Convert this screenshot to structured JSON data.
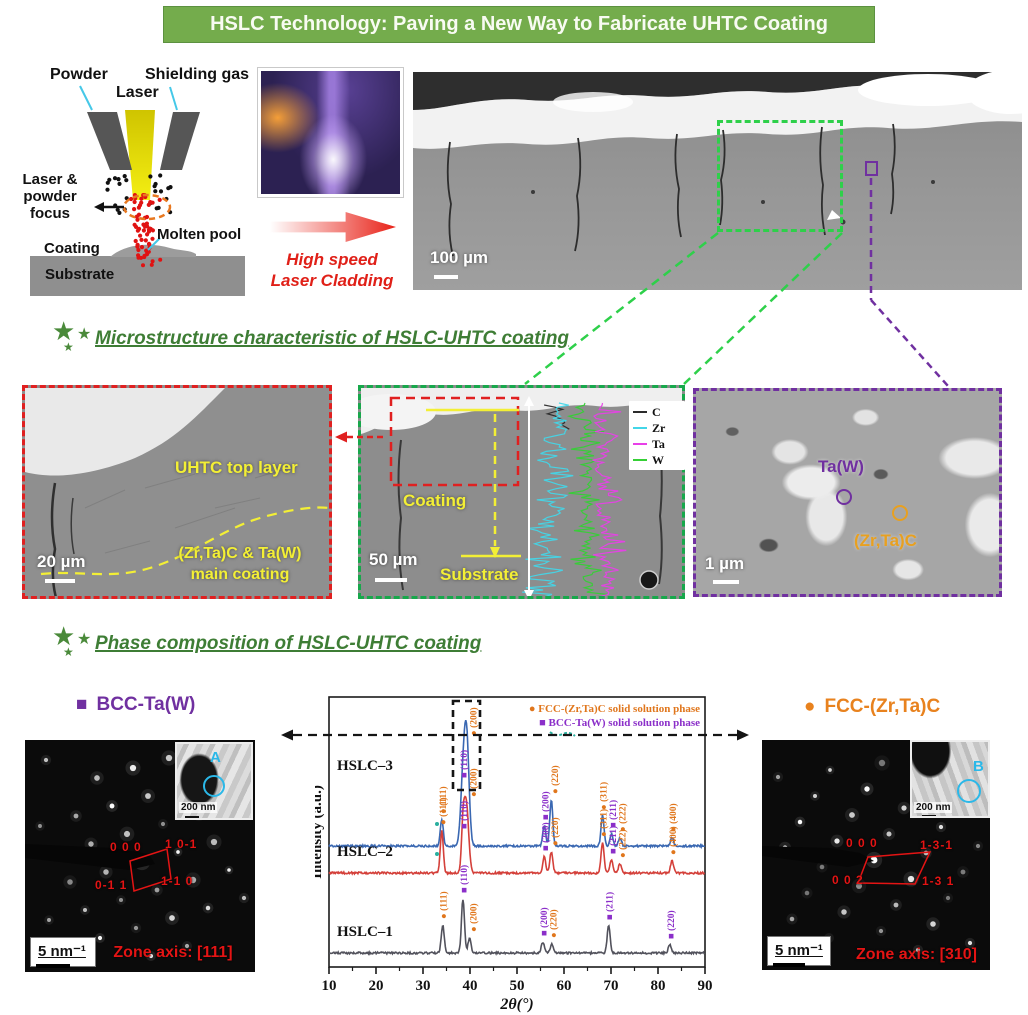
{
  "banner": {
    "title": "HSLC Technology: Paving a New Way to Fabricate UHTC Coating"
  },
  "schematic": {
    "powder": "Powder",
    "shielding_gas": "Shielding gas",
    "laser": "Laser",
    "focus": "Laser &\npowder\nfocus",
    "molten_pool": "Molten pool",
    "coating": "Coating",
    "substrate": "Substrate"
  },
  "process": {
    "caption": "High speed\nLaser Cladding"
  },
  "overview": {
    "scale_bar": "100 µm"
  },
  "sections": {
    "microstructure": "Microstructure characteristic of HSLC-UHTC coating",
    "phase": "Phase composition of HSLC-UHTC coating"
  },
  "panel_red": {
    "top_label": "UHTC top layer",
    "main_label": "(Zr,Ta)C  & Ta(W)\nmain coating",
    "scale_bar": "20 µm"
  },
  "panel_green": {
    "coating": "Coating",
    "substrate": "Substrate",
    "scale_bar": "50 µm",
    "legend": [
      {
        "label": "C",
        "color": "#2b2b2b"
      },
      {
        "label": "Zr",
        "color": "#43d6e8"
      },
      {
        "label": "Ta",
        "color": "#e840e8"
      },
      {
        "label": "W",
        "color": "#35d035"
      }
    ]
  },
  "panel_purple": {
    "taw": "Ta(W)",
    "zrtac": "(Zr,Ta)C",
    "scale_bar": "1 µm"
  },
  "bottom": {
    "bcc_marker": "■",
    "bcc_label": "BCC-Ta(W)",
    "fcc_marker": "●",
    "fcc_label": "FCC-(Zr,Ta)C",
    "sadp_left": {
      "spots": {
        "s000": "0 0 0",
        "s101": "1 0-1",
        "s011": "0-1 1",
        "s110": "1-1 0"
      },
      "zone_axis": "Zone axis: [111]",
      "scale_bar": "5 nm⁻¹",
      "inset_label": "A",
      "inset_scale": "200 nm"
    },
    "sadp_right": {
      "spots": {
        "s000": "0 0 0",
        "s131a": "1-3-1",
        "s002": "0 0 2",
        "s131b": "1-3 1"
      },
      "zone_axis": "Zone axis: [310]",
      "scale_bar": "5 nm⁻¹",
      "inset_label": "B",
      "inset_scale": "200 nm"
    }
  },
  "colors": {
    "banner_green": "#74ac4c",
    "header_green": "#3e7d35",
    "accent_red": "#e02020",
    "annotation_yellow": "#f3ef35",
    "purple": "#7030a0",
    "orange": "#e8821e",
    "green_dash": "#2ed04a",
    "cyan": "#2bb8e8"
  },
  "chart_data": {
    "type": "line",
    "title": "",
    "xlabel": "2θ(°)",
    "ylabel": "Intensity (a.u.)",
    "xlim": [
      10,
      90
    ],
    "xticks": [
      10,
      20,
      30,
      40,
      50,
      60,
      70,
      80,
      90
    ],
    "grid": false,
    "legend_position": "top-right",
    "legend": [
      {
        "marker": "●",
        "label": "FCC-(Zr,Ta)C solid solution phase",
        "color": "#e0761c"
      },
      {
        "marker": "■",
        "label": "BCC-Ta(W) solid solution phase",
        "color": "#8b2fc9"
      }
    ],
    "phase_colors": {
      "FCC": "#e0761c",
      "BCC": "#8b2fc9"
    },
    "phase_markers": {
      "FCC": "●",
      "BCC": "■"
    },
    "series": [
      {
        "name": "HSLC–3",
        "color": "#3a68b2",
        "peaks": [
          {
            "two_theta": 34.0,
            "intensity": 26,
            "phase": "FCC",
            "hkl": "(111)"
          },
          {
            "two_theta": 38.5,
            "intensity": 62,
            "phase": "BCC",
            "hkl": "(110)"
          },
          {
            "two_theta": 39.3,
            "intensity": 104,
            "phase": "FCC",
            "hkl": "(200)"
          },
          {
            "two_theta": 55.8,
            "intensity": 20,
            "phase": "BCC",
            "hkl": "(200)"
          },
          {
            "two_theta": 57.3,
            "intensity": 46,
            "phase": "FCC",
            "hkl": "(220)"
          },
          {
            "two_theta": 68.2,
            "intensity": 30,
            "phase": "FCC",
            "hkl": "(311)"
          },
          {
            "two_theta": 70.1,
            "intensity": 12,
            "phase": "BCC",
            "hkl": "(211)"
          },
          {
            "two_theta": 71.9,
            "intensity": 8,
            "phase": "FCC",
            "hkl": "(222)"
          },
          {
            "two_theta": 83.0,
            "intensity": 8,
            "phase": "FCC",
            "hkl": "(400)"
          }
        ]
      },
      {
        "name": "HSLC–2",
        "color": "#d4403a",
        "peaks": [
          {
            "two_theta": 34.0,
            "intensity": 42,
            "phase": "FCC",
            "hkl": "(111)"
          },
          {
            "two_theta": 38.5,
            "intensity": 38,
            "phase": "BCC",
            "hkl": "(110)"
          },
          {
            "two_theta": 39.2,
            "intensity": 70,
            "phase": "FCC",
            "hkl": "(200)"
          },
          {
            "two_theta": 55.8,
            "intensity": 16,
            "phase": "BCC",
            "hkl": "(200)"
          },
          {
            "two_theta": 57.3,
            "intensity": 21,
            "phase": "FCC",
            "hkl": "(220)"
          },
          {
            "two_theta": 68.2,
            "intensity": 30,
            "phase": "FCC",
            "hkl": "(311)"
          },
          {
            "two_theta": 70.1,
            "intensity": 13,
            "phase": "BCC",
            "hkl": "(211)"
          },
          {
            "two_theta": 71.9,
            "intensity": 9,
            "phase": "FCC",
            "hkl": "(222)"
          },
          {
            "two_theta": 83.0,
            "intensity": 12,
            "phase": "FCC",
            "hkl": "(400)"
          }
        ]
      },
      {
        "name": "HSLC–1",
        "color": "#52525c",
        "peaks": [
          {
            "two_theta": 34.2,
            "intensity": 28,
            "phase": "FCC",
            "hkl": "(111)"
          },
          {
            "two_theta": 38.5,
            "intensity": 54,
            "phase": "BCC",
            "hkl": "(110)"
          },
          {
            "two_theta": 39.9,
            "intensity": 15,
            "phase": "FCC",
            "hkl": "(200)"
          },
          {
            "two_theta": 55.5,
            "intensity": 11,
            "phase": "BCC",
            "hkl": "(200)"
          },
          {
            "two_theta": 57.4,
            "intensity": 9,
            "phase": "FCC",
            "hkl": "(220)"
          },
          {
            "two_theta": 69.5,
            "intensity": 27,
            "phase": "BCC",
            "hkl": "(211)"
          },
          {
            "two_theta": 82.5,
            "intensity": 8,
            "phase": "BCC",
            "hkl": "(220)"
          }
        ]
      }
    ]
  }
}
